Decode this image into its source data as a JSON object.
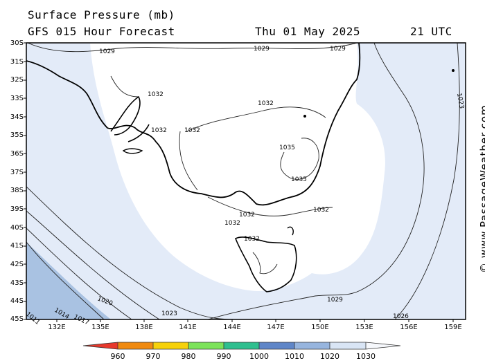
{
  "header": {
    "title": "Surface Pressure (mb)",
    "model": "GFS 015 Hour Forecast",
    "date": "Thu 01 May 2025",
    "time": "21 UTC"
  },
  "map": {
    "lat_labels": [
      "30S",
      "31S",
      "32S",
      "33S",
      "34S",
      "35S",
      "36S",
      "37S",
      "38S",
      "39S",
      "40S",
      "41S",
      "42S",
      "43S",
      "44S",
      "45S"
    ],
    "lon_labels": [
      "132E",
      "135E",
      "138E",
      "141E",
      "144E",
      "147E",
      "150E",
      "153E",
      "156E",
      "159E"
    ],
    "isobar_labels": [
      "1029",
      "1029",
      "1029",
      "1032",
      "1032",
      "1032",
      "1032",
      "1035",
      "1035",
      "1032",
      "1032",
      "1032",
      "1029",
      "1026",
      "1023",
      "1020",
      "1017",
      "1014",
      "1011",
      "1023"
    ],
    "colors": {
      "band_1030_plus": "#ffffff",
      "band_1020_1030": "#e3ebf8",
      "band_1010_1020": "#a9c2e2",
      "land_outline": "#000000"
    }
  },
  "legend": {
    "values": [
      "960",
      "970",
      "980",
      "990",
      "1000",
      "1010",
      "1020",
      "1030"
    ],
    "colors": [
      "#e8392c",
      "#f08a10",
      "#f6d10a",
      "#7ce35a",
      "#2fbf8f",
      "#5f86c8",
      "#97b5de",
      "#d9e5f5",
      "#f6f8fc"
    ]
  },
  "credit": "© www.PassageWeather.com"
}
